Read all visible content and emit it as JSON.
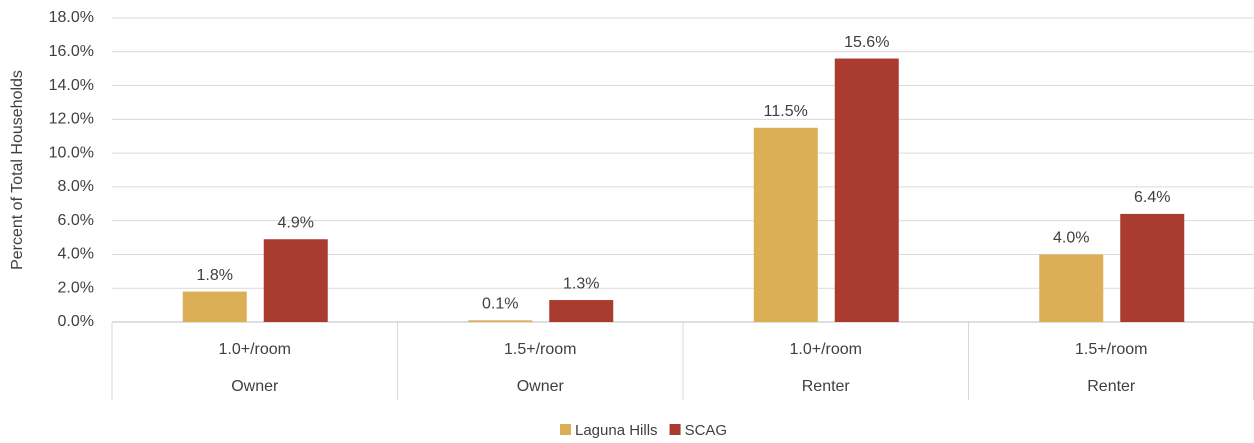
{
  "chart_data": {
    "type": "bar",
    "y_label": "Percent of Total Households",
    "categories": [
      "1.0+/room",
      "1.5+/room",
      "1.0+/room",
      "1.5+/room"
    ],
    "groups": [
      "Owner",
      "Owner",
      "Renter",
      "Renter"
    ],
    "series": [
      {
        "name": "Laguna Hills",
        "color": "#dcae55",
        "values": [
          1.8,
          0.1,
          11.5,
          4.0
        ],
        "value_labels": [
          "1.8%",
          "0.1%",
          "11.5%",
          "4.0%"
        ]
      },
      {
        "name": "SCAG",
        "color": "#a93b2f",
        "values": [
          4.9,
          1.3,
          15.6,
          6.4
        ],
        "value_labels": [
          "4.9%",
          "1.3%",
          "15.6%",
          "6.4%"
        ]
      }
    ],
    "ylim": [
      0,
      18
    ],
    "yticks": [
      {
        "value": 0,
        "label": "0.0%"
      },
      {
        "value": 2,
        "label": "2.0%"
      },
      {
        "value": 4,
        "label": "4.0%"
      },
      {
        "value": 6,
        "label": "6.0%"
      },
      {
        "value": 8,
        "label": "8.0%"
      },
      {
        "value": 10,
        "label": "10.0%"
      },
      {
        "value": 12,
        "label": "12.0%"
      },
      {
        "value": 14,
        "label": "14.0%"
      },
      {
        "value": 16,
        "label": "16.0%"
      },
      {
        "value": 18,
        "label": "18.0%"
      }
    ],
    "grid": true,
    "legend": "bottom"
  }
}
